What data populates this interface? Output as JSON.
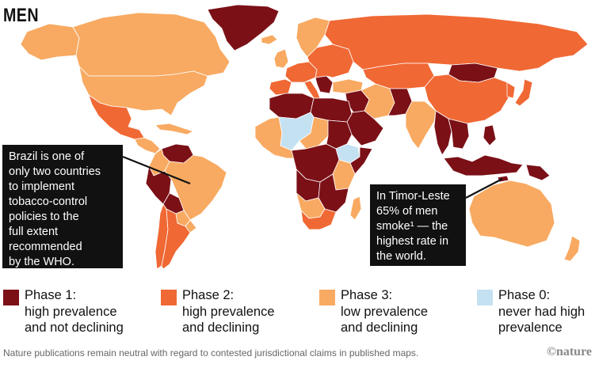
{
  "title": "MEN",
  "colors": {
    "phase1": "#7b1017",
    "phase2": "#f06834",
    "phase3": "#f8aa62",
    "phase0": "#c4e1f2",
    "ocean": "#ffffff",
    "border": "#ffffff"
  },
  "callouts": {
    "brazil": {
      "lines": [
        "Brazil is one of",
        "only two countries",
        "to implement",
        "tobacco-control",
        "policies to the",
        "full extent",
        "recommended",
        "by the WHO."
      ]
    },
    "timor": {
      "lines": [
        "In Timor-Leste",
        "65% of men",
        "smoke¹ — the",
        "highest rate in",
        "the world."
      ]
    }
  },
  "legend": [
    {
      "key": "phase1",
      "lines": [
        "Phase 1:",
        "high prevalence",
        "and not declining"
      ]
    },
    {
      "key": "phase2",
      "lines": [
        "Phase 2:",
        "high prevalence",
        "and declining"
      ]
    },
    {
      "key": "phase3",
      "lines": [
        "Phase 3:",
        "low prevalence",
        "and declining"
      ]
    },
    {
      "key": "phase0",
      "lines": [
        "Phase 0:",
        "never had high",
        "prevalence"
      ]
    }
  ],
  "footer": "Nature publications remain neutral with regard to contested jurisdictional claims in published maps.",
  "logo": "©nature",
  "regions": [
    {
      "name": "greenland",
      "phase": "phase1"
    },
    {
      "name": "canada",
      "phase": "phase3"
    },
    {
      "name": "alaska",
      "phase": "phase3"
    },
    {
      "name": "usa",
      "phase": "phase3"
    },
    {
      "name": "mexico",
      "phase": "phase2"
    },
    {
      "name": "central-america",
      "phase": "phase3"
    },
    {
      "name": "caribbean",
      "phase": "phase3"
    },
    {
      "name": "venezuela",
      "phase": "phase1"
    },
    {
      "name": "colombia-ecuador",
      "phase": "phase3"
    },
    {
      "name": "peru",
      "phase": "phase1"
    },
    {
      "name": "brazil",
      "phase": "phase3"
    },
    {
      "name": "bolivia",
      "phase": "phase1"
    },
    {
      "name": "paraguay",
      "phase": "phase3"
    },
    {
      "name": "chile",
      "phase": "phase2"
    },
    {
      "name": "argentina",
      "phase": "phase2"
    },
    {
      "name": "uruguay",
      "phase": "phase3"
    },
    {
      "name": "iceland",
      "phase": "phase3"
    },
    {
      "name": "scandinavia",
      "phase": "phase3"
    },
    {
      "name": "uk-ireland",
      "phase": "phase3"
    },
    {
      "name": "western-europe",
      "phase": "phase2"
    },
    {
      "name": "iberia",
      "phase": "phase2"
    },
    {
      "name": "italy",
      "phase": "phase2"
    },
    {
      "name": "balkans",
      "phase": "phase1"
    },
    {
      "name": "eastern-europe",
      "phase": "phase2"
    },
    {
      "name": "russia",
      "phase": "phase2"
    },
    {
      "name": "kazakhstan",
      "phase": "phase2"
    },
    {
      "name": "mongolia",
      "phase": "phase1"
    },
    {
      "name": "china",
      "phase": "phase2"
    },
    {
      "name": "korea",
      "phase": "phase2"
    },
    {
      "name": "japan",
      "phase": "phase2"
    },
    {
      "name": "turkey",
      "phase": "phase3"
    },
    {
      "name": "middle-east",
      "phase": "phase1"
    },
    {
      "name": "arabia",
      "phase": "phase1"
    },
    {
      "name": "iran",
      "phase": "phase3"
    },
    {
      "name": "afghanistan-pakistan",
      "phase": "phase1"
    },
    {
      "name": "india",
      "phase": "phase3"
    },
    {
      "name": "myanmar-thailand",
      "phase": "phase1"
    },
    {
      "name": "indochina",
      "phase": "phase1"
    },
    {
      "name": "philippines",
      "phase": "phase1"
    },
    {
      "name": "indonesia",
      "phase": "phase1"
    },
    {
      "name": "timor-leste",
      "phase": "phase1"
    },
    {
      "name": "papua-new-guinea",
      "phase": "phase1"
    },
    {
      "name": "australia",
      "phase": "phase3"
    },
    {
      "name": "new-zealand",
      "phase": "phase3"
    },
    {
      "name": "west-africa",
      "phase": "phase3"
    },
    {
      "name": "morocco-algeria",
      "phase": "phase1"
    },
    {
      "name": "mali-niger",
      "phase": "phase0"
    },
    {
      "name": "libya-egypt",
      "phase": "phase1"
    },
    {
      "name": "sudan",
      "phase": "phase1"
    },
    {
      "name": "chad",
      "phase": "phase3"
    },
    {
      "name": "ethiopia",
      "phase": "phase0"
    },
    {
      "name": "somalia",
      "phase": "phase1"
    },
    {
      "name": "central-africa",
      "phase": "phase1"
    },
    {
      "name": "kenya-tanzania",
      "phase": "phase3"
    },
    {
      "name": "angola",
      "phase": "phase1"
    },
    {
      "name": "zambia-mozambique",
      "phase": "phase1"
    },
    {
      "name": "namibia-botswana",
      "phase": "phase3"
    },
    {
      "name": "south-africa",
      "phase": "phase2"
    },
    {
      "name": "madagascar",
      "phase": "phase3"
    }
  ]
}
